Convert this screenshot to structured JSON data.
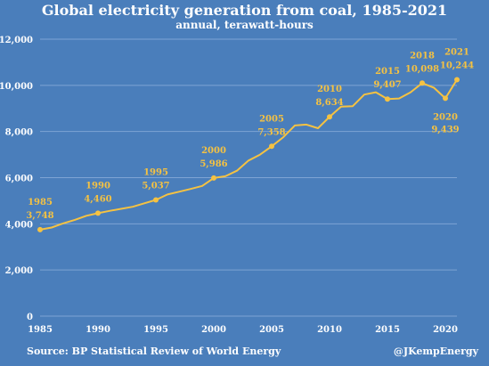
{
  "chart_data": {
    "type": "line",
    "title": "Global electricity generation from coal, 1985-2021",
    "subtitle": "annual, terawatt-hours",
    "xlabel": "",
    "ylabel": "",
    "xlim": [
      1985,
      2021
    ],
    "ylim": [
      0,
      12000
    ],
    "x_ticks": [
      1985,
      1990,
      1995,
      2000,
      2005,
      2010,
      2015,
      2020
    ],
    "y_ticks": [
      0,
      2000,
      4000,
      6000,
      8000,
      10000,
      12000
    ],
    "y_tick_labels": [
      "0",
      "2,000",
      "4,000",
      "6,000",
      "8,000",
      "10,000",
      "12,000"
    ],
    "grid": true,
    "colors": {
      "background": "#4a7ebb",
      "line": "#f5c242",
      "grid": "#7ea4d4",
      "text": "#ffffff",
      "label": "#f5c242"
    },
    "series": [
      {
        "x": [
          1985,
          1986,
          1987,
          1988,
          1989,
          1990,
          1991,
          1992,
          1993,
          1994,
          1995,
          1996,
          1997,
          1998,
          1999,
          2000,
          2001,
          2002,
          2003,
          2004,
          2005,
          2006,
          2007,
          2008,
          2009,
          2010,
          2011,
          2012,
          2013,
          2014,
          2015,
          2016,
          2017,
          2018,
          2019,
          2020,
          2021
        ],
        "y": [
          3748,
          3840,
          4020,
          4170,
          4350,
          4460,
          4560,
          4650,
          4740,
          4890,
          5037,
          5270,
          5390,
          5510,
          5640,
          5986,
          6060,
          6300,
          6740,
          7000,
          7358,
          7750,
          8260,
          8300,
          8140,
          8634,
          9080,
          9100,
          9600,
          9700,
          9407,
          9430,
          9700,
          10098,
          9900,
          9439,
          10244
        ]
      }
    ],
    "annotations": [
      {
        "x": 1985,
        "y": 3748,
        "year": "1985",
        "value": "3,748",
        "pos": "above"
      },
      {
        "x": 1990,
        "y": 4460,
        "year": "1990",
        "value": "4,460",
        "pos": "above"
      },
      {
        "x": 1995,
        "y": 5037,
        "year": "1995",
        "value": "5,037",
        "pos": "above"
      },
      {
        "x": 2000,
        "y": 5986,
        "year": "2000",
        "value": "5,986",
        "pos": "above"
      },
      {
        "x": 2005,
        "y": 7358,
        "year": "2005",
        "value": "7,358",
        "pos": "above"
      },
      {
        "x": 2010,
        "y": 8634,
        "year": "2010",
        "value": "8,634",
        "pos": "above"
      },
      {
        "x": 2015,
        "y": 9407,
        "year": "2015",
        "value": "9,407",
        "pos": "above"
      },
      {
        "x": 2018,
        "y": 10098,
        "year": "2018",
        "value": "10,098",
        "pos": "above"
      },
      {
        "x": 2021,
        "y": 10244,
        "year": "2021",
        "value": "10,244",
        "pos": "above"
      },
      {
        "x": 2020,
        "y": 9439,
        "year": "2020",
        "value": "9,439",
        "pos": "below"
      }
    ]
  },
  "footer": {
    "source": "Source: BP Statistical Review of World Energy",
    "credit": "@JKempEnergy"
  }
}
